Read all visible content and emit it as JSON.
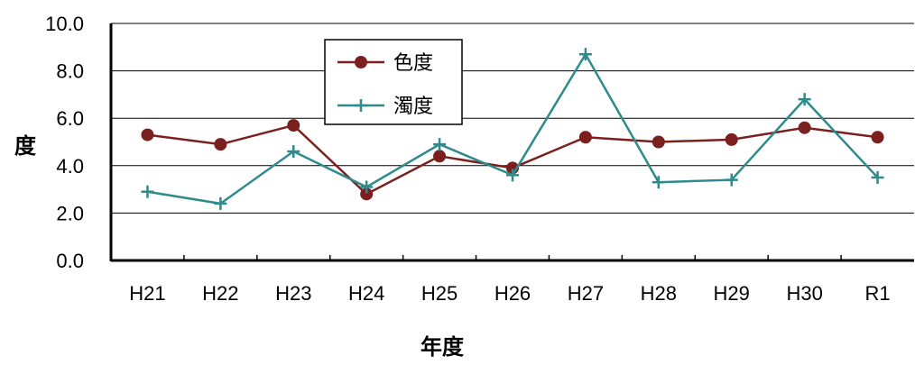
{
  "chart_data": {
    "type": "line",
    "title": "",
    "xlabel": "年度",
    "ylabel": "度",
    "ylim": [
      0,
      10
    ],
    "yticks": [
      "0.0",
      "2.0",
      "4.0",
      "6.0",
      "8.0",
      "10.0"
    ],
    "categories": [
      "H21",
      "H22",
      "H23",
      "H24",
      "H25",
      "H26",
      "H27",
      "H28",
      "H29",
      "H30",
      "R1"
    ],
    "grid": true,
    "legend_position": "top-left",
    "series": [
      {
        "name": "色度",
        "color": "#7b1f1f",
        "marker": "circle",
        "values": [
          5.3,
          4.9,
          5.7,
          2.8,
          4.4,
          3.9,
          5.2,
          5.0,
          5.1,
          5.6,
          5.2
        ]
      },
      {
        "name": "濁度",
        "color": "#2e8b8b",
        "marker": "plus",
        "values": [
          2.9,
          2.4,
          4.6,
          3.1,
          4.9,
          3.6,
          8.7,
          3.3,
          3.4,
          6.8,
          3.5
        ]
      }
    ]
  }
}
